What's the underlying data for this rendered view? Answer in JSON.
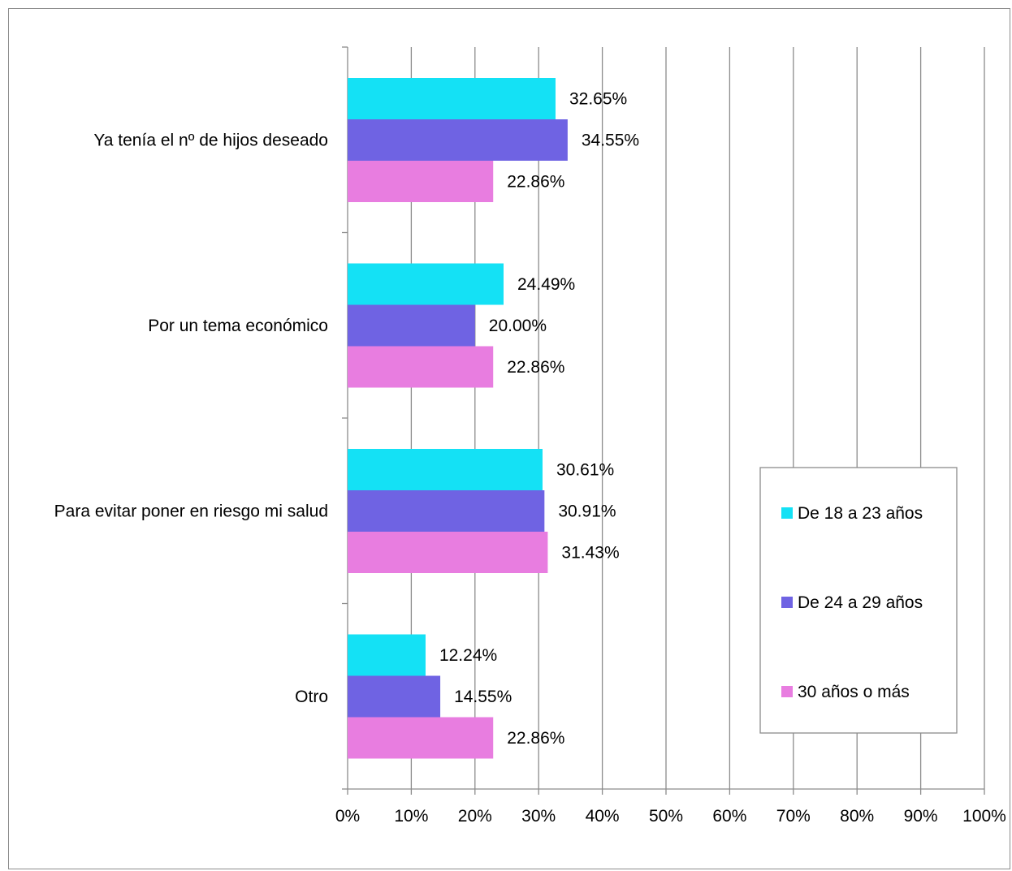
{
  "chart_data": {
    "type": "bar",
    "orientation": "horizontal",
    "categories": [
      "Ya tenía el nº de hijos deseado",
      "Por un tema económico",
      "Para evitar poner en riesgo mi salud",
      "Otro"
    ],
    "series": [
      {
        "name": "De 18 a 23 años",
        "color": "#14e1f5",
        "values": [
          32.65,
          24.49,
          30.61,
          12.24
        ],
        "labels": [
          "32.65%",
          "24.49%",
          "30.61%",
          "12.24%"
        ]
      },
      {
        "name": "De 24 a 29 años",
        "color": "#6f63e3",
        "values": [
          34.55,
          20.0,
          30.91,
          14.55
        ],
        "labels": [
          "34.55%",
          "20.00%",
          "30.91%",
          "14.55%"
        ]
      },
      {
        "name": "30 años o más",
        "color": "#e87de0",
        "values": [
          22.86,
          22.86,
          31.43,
          22.86
        ],
        "labels": [
          "22.86%",
          "22.86%",
          "31.43%",
          "22.86%"
        ]
      }
    ],
    "x_ticks": [
      "0%",
      "10%",
      "20%",
      "30%",
      "40%",
      "50%",
      "60%",
      "70%",
      "80%",
      "90%",
      "100%"
    ],
    "xlim": [
      0,
      100
    ],
    "grid": true,
    "legend_position": "right",
    "gridline_color": "#8c8c8c"
  }
}
